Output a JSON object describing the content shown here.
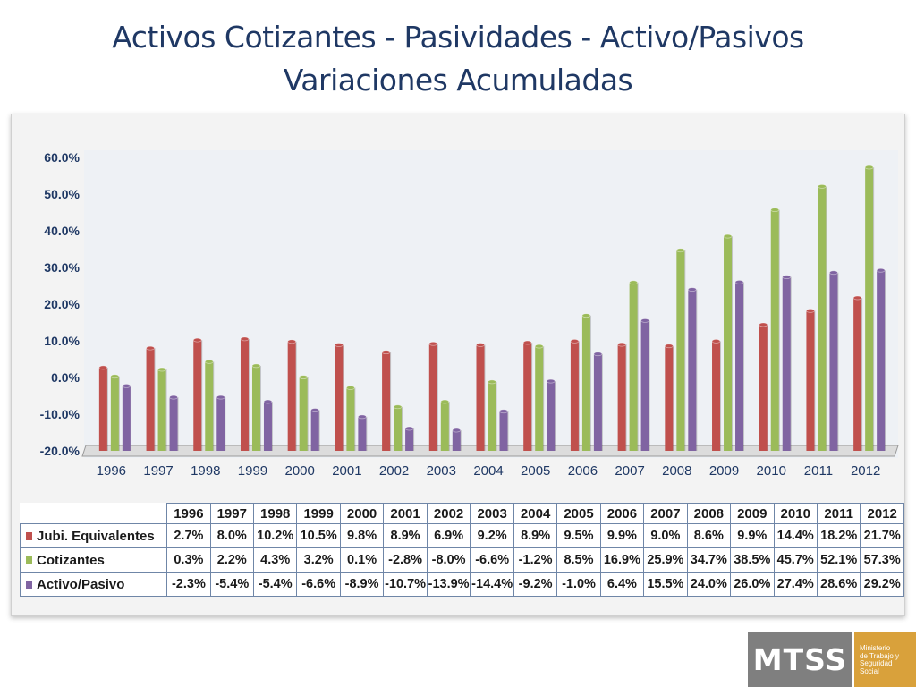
{
  "title_line1": "Activos Cotizantes - Pasividades - Activo/Pasivos",
  "title_line2": "Variaciones Acumuladas",
  "chart_data": {
    "type": "bar",
    "categories": [
      "1996",
      "1997",
      "1998",
      "1999",
      "2000",
      "2001",
      "2002",
      "2003",
      "2004",
      "2005",
      "2006",
      "2007",
      "2008",
      "2009",
      "2010",
      "2011",
      "2012"
    ],
    "series": [
      {
        "name": "Jubi. Equivalentes",
        "color": "#c0504d",
        "values": [
          2.7,
          8.0,
          10.2,
          10.5,
          9.8,
          8.9,
          6.9,
          9.2,
          8.9,
          9.5,
          9.9,
          9.0,
          8.6,
          9.9,
          14.4,
          18.2,
          21.7
        ]
      },
      {
        "name": "Cotizantes",
        "color": "#9bbb59",
        "values": [
          0.3,
          2.2,
          4.3,
          3.2,
          0.1,
          -2.8,
          -8.0,
          -6.6,
          -1.2,
          8.5,
          16.9,
          25.9,
          34.7,
          38.5,
          45.7,
          52.1,
          57.3
        ]
      },
      {
        "name": "Activo/Pasivo",
        "color": "#8064a2",
        "values": [
          -2.3,
          -5.4,
          -5.4,
          -6.6,
          -8.9,
          -10.7,
          -13.9,
          -14.4,
          -9.2,
          -1.0,
          6.4,
          15.5,
          24.0,
          26.0,
          27.4,
          28.6,
          29.2
        ]
      }
    ],
    "ylim": [
      -20,
      60
    ],
    "yticks": [
      "60.0%",
      "50.0%",
      "40.0%",
      "30.0%",
      "20.0%",
      "10.0%",
      "0.0%",
      "-10.0%",
      "-20.0%"
    ],
    "grid": false,
    "legend": "data table below chart"
  },
  "table": {
    "years": [
      "1996",
      "1997",
      "1998",
      "1999",
      "2000",
      "2001",
      "2002",
      "2003",
      "2004",
      "2005",
      "2006",
      "2007",
      "2008",
      "2009",
      "2010",
      "2011",
      "2012"
    ],
    "rows": [
      {
        "label": "Jubi. Equivalentes",
        "color": "#c0504d",
        "cells": [
          "2.7%",
          "8.0%",
          "10.2%",
          "10.5%",
          "9.8%",
          "8.9%",
          "6.9%",
          "9.2%",
          "8.9%",
          "9.5%",
          "9.9%",
          "9.0%",
          "8.6%",
          "9.9%",
          "14.4%",
          "18.2%",
          "21.7%"
        ]
      },
      {
        "label": "Cotizantes",
        "color": "#9bbb59",
        "cells": [
          "0.3%",
          "2.2%",
          "4.3%",
          "3.2%",
          "0.1%",
          "-2.8%",
          "-8.0%",
          "-6.6%",
          "-1.2%",
          "8.5%",
          "16.9%",
          "25.9%",
          "34.7%",
          "38.5%",
          "45.7%",
          "52.1%",
          "57.3%"
        ]
      },
      {
        "label": "Activo/Pasivo",
        "color": "#8064a2",
        "cells": [
          "-2.3%",
          "-5.4%",
          "-5.4%",
          "-6.6%",
          "-8.9%",
          "-10.7%",
          "-13.9%",
          "-14.4%",
          "-9.2%",
          "-1.0%",
          "6.4%",
          "15.5%",
          "24.0%",
          "26.0%",
          "27.4%",
          "28.6%",
          "29.2%"
        ]
      }
    ]
  },
  "logo": {
    "mark": "MTSS",
    "lines": [
      "Ministerio",
      "de Trabajo y",
      "Seguridad",
      "Social"
    ]
  }
}
